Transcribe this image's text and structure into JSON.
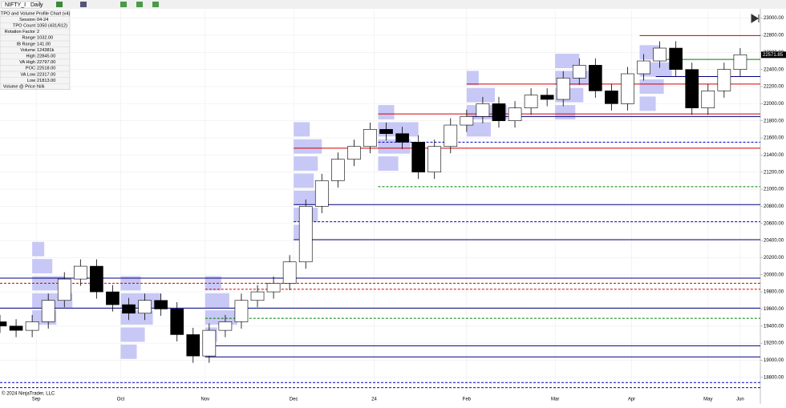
{
  "toolbar": {
    "symbol": "NIFTY_I",
    "interval": "Daily"
  },
  "info_table": {
    "title": "TPO and Volume Profile Chart (v4)",
    "rows": [
      [
        "Session",
        "04-24"
      ],
      [
        "TPO Count",
        "1050 (431/612)"
      ],
      [
        "Rotation Factor",
        "2"
      ],
      [
        "Range",
        "1032.00"
      ],
      [
        "IB Range",
        "141.00"
      ],
      [
        "Volume",
        "124381k"
      ],
      [
        "High",
        "22845.00"
      ],
      [
        "VA High",
        "22797.00"
      ],
      [
        "POC",
        "22518.00"
      ],
      [
        "VA Low",
        "22317.00"
      ],
      [
        "Low",
        "21813.00"
      ],
      [
        "Volume @ Price",
        "N/A"
      ]
    ]
  },
  "footer": "© 2024 NinjaTrader, LLC",
  "chart_data": {
    "type": "candlestick",
    "x": [
      0,
      4,
      8,
      12,
      16,
      20,
      24,
      28,
      32,
      36,
      40,
      44,
      48,
      52,
      56,
      60,
      64,
      68,
      72,
      76,
      80,
      84,
      88,
      92,
      96,
      100,
      104,
      108,
      112,
      116,
      120,
      124,
      128,
      132,
      136,
      140,
      144,
      148,
      152,
      156,
      160,
      164,
      168,
      172,
      176,
      180,
      184
    ],
    "open": [
      19450,
      19400,
      19350,
      19450,
      19700,
      19950,
      20100,
      19800,
      19650,
      19550,
      19700,
      19600,
      19300,
      19050,
      19350,
      19450,
      19700,
      19800,
      19900,
      20150,
      20800,
      21100,
      21350,
      21500,
      21700,
      21650,
      21550,
      21200,
      21500,
      21750,
      21850,
      22000,
      21800,
      21950,
      22100,
      22050,
      22300,
      22450,
      22150,
      22000,
      22350,
      22500,
      22650,
      22400,
      21950,
      22150,
      22400
    ],
    "high": [
      19530,
      19480,
      19530,
      19780,
      20030,
      20180,
      20180,
      19880,
      19730,
      19780,
      19780,
      19680,
      19380,
      19430,
      19530,
      19780,
      19880,
      19980,
      20230,
      20880,
      21180,
      21430,
      21580,
      21780,
      21780,
      21730,
      21630,
      21580,
      21830,
      21930,
      22080,
      22080,
      22030,
      22180,
      22180,
      22380,
      22530,
      22530,
      22230,
      22430,
      22580,
      22730,
      22730,
      22480,
      22230,
      22480,
      22650
    ],
    "low": [
      19320,
      19270,
      19270,
      19370,
      19620,
      19870,
      19720,
      19570,
      19470,
      19470,
      19520,
      19220,
      18970,
      18970,
      19270,
      19370,
      19620,
      19720,
      19820,
      20070,
      20720,
      21020,
      21270,
      21420,
      21570,
      21470,
      21120,
      21120,
      21420,
      21670,
      21770,
      21720,
      21720,
      21870,
      21970,
      21970,
      22220,
      22070,
      21920,
      21920,
      22270,
      22420,
      22320,
      21870,
      21870,
      22070,
      22320
    ],
    "close": [
      19400,
      19350,
      19450,
      19700,
      19950,
      20100,
      19800,
      19650,
      19550,
      19700,
      19600,
      19300,
      19050,
      19350,
      19450,
      19700,
      19800,
      19900,
      20150,
      20800,
      21100,
      21350,
      21500,
      21700,
      21650,
      21550,
      21200,
      21500,
      21750,
      21850,
      22000,
      21800,
      21950,
      22100,
      22050,
      22300,
      22450,
      22150,
      22000,
      22350,
      22500,
      22650,
      22400,
      21950,
      22150,
      22400,
      22572
    ],
    "up_color": "#ffffff",
    "down_color": "#000000",
    "last_price": 22571.85,
    "xlim": [
      0,
      189
    ],
    "ylim": [
      18620,
      23100
    ],
    "xticks": [
      {
        "value": 9,
        "label": "Sep"
      },
      {
        "value": 30,
        "label": "Oct"
      },
      {
        "value": 51,
        "label": "Nov"
      },
      {
        "value": 73,
        "label": "Dec"
      },
      {
        "value": 93,
        "label": "24"
      },
      {
        "value": 116,
        "label": "Feb"
      },
      {
        "value": 138,
        "label": "Mar"
      },
      {
        "value": 157,
        "label": "Apr"
      },
      {
        "value": 176,
        "label": "May"
      },
      {
        "value": 184,
        "label": "Jun"
      }
    ],
    "yticks": [
      {
        "value": 18800,
        "label": "18800.00"
      },
      {
        "value": 19000,
        "label": "19000.00"
      },
      {
        "value": 19200,
        "label": "19200.00"
      },
      {
        "value": 19400,
        "label": "19400.00"
      },
      {
        "value": 19600,
        "label": "19600.00"
      },
      {
        "value": 19800,
        "label": "19800.00"
      },
      {
        "value": 20000,
        "label": "20000.00"
      },
      {
        "value": 20200,
        "label": "20200.00"
      },
      {
        "value": 20400,
        "label": "20400.00"
      },
      {
        "value": 20600,
        "label": "20600.00"
      },
      {
        "value": 20800,
        "label": "20800.00"
      },
      {
        "value": 21000,
        "label": "21000.00"
      },
      {
        "value": 21200,
        "label": "21200.00"
      },
      {
        "value": 21400,
        "label": "21400.00"
      },
      {
        "value": 21600,
        "label": "21600.00"
      },
      {
        "value": 21800,
        "label": "21800.00"
      },
      {
        "value": 22000,
        "label": "22000.00"
      },
      {
        "value": 22200,
        "label": "22200.00"
      },
      {
        "value": 22400,
        "label": "22400.00"
      },
      {
        "value": 22600,
        "label": "22600.00"
      },
      {
        "value": 22800,
        "label": "22800.00"
      },
      {
        "value": 23000,
        "label": "23000.00"
      }
    ],
    "grid": true,
    "profile_color": "#c8c8f6",
    "profiles": [
      {
        "start": 8,
        "prices": [
          19500,
          19700,
          19900,
          20100,
          20300
        ],
        "widths": [
          6,
          10,
          8,
          5,
          3
        ]
      },
      {
        "start": 30,
        "prices": [
          19100,
          19300,
          19500,
          19700,
          19900
        ],
        "widths": [
          4,
          6,
          8,
          10,
          5
        ]
      },
      {
        "start": 51,
        "prices": [
          19300,
          19500,
          19700,
          19900
        ],
        "widths": [
          3,
          8,
          6,
          4
        ]
      },
      {
        "start": 73,
        "prices": [
          20500,
          20700,
          20900,
          21100,
          21300,
          21500,
          21700
        ],
        "widths": [
          4,
          6,
          8,
          5,
          6,
          7,
          4
        ]
      },
      {
        "start": 94,
        "prices": [
          21300,
          21500,
          21700,
          21900
        ],
        "widths": [
          5,
          8,
          10,
          4
        ]
      },
      {
        "start": 116,
        "prices": [
          21700,
          21900,
          22100,
          22300
        ],
        "widths": [
          6,
          10,
          7,
          3
        ]
      },
      {
        "start": 138,
        "prices": [
          21900,
          22100,
          22300,
          22500
        ],
        "widths": [
          5,
          7,
          10,
          6
        ]
      },
      {
        "start": 159,
        "prices": [
          22000,
          22200,
          22400,
          22600
        ],
        "widths": [
          4,
          6,
          8,
          5
        ]
      }
    ],
    "levels": [
      {
        "value": 22797,
        "color": "#d00000",
        "dashed": false,
        "start": 159
      },
      {
        "value": 22518,
        "color": "#008000",
        "dashed": false,
        "start": 163
      },
      {
        "value": 22317,
        "color": "#000080",
        "dashed": false,
        "start": 163
      },
      {
        "value": 22230,
        "color": "#d00000",
        "dashed": false,
        "start": 116
      },
      {
        "value": 21880,
        "color": "#d00000",
        "dashed": false,
        "start": 94
      },
      {
        "value": 21850,
        "color": "#000080",
        "dashed": false,
        "start": 116
      },
      {
        "value": 21550,
        "color": "#0000c0",
        "dashed": true,
        "start": 94
      },
      {
        "value": 21480,
        "color": "#d00000",
        "dashed": false,
        "start": 73
      },
      {
        "value": 21030,
        "color": "#008000",
        "dashed": true,
        "start": 94
      },
      {
        "value": 20820,
        "color": "#000080",
        "dashed": false,
        "start": 73
      },
      {
        "value": 20620,
        "color": "#0000c0",
        "dashed": true,
        "start": 73
      },
      {
        "value": 20410,
        "color": "#000080",
        "dashed": false,
        "start": 73
      },
      {
        "value": 19960,
        "color": "#000080",
        "dashed": false,
        "start": 0
      },
      {
        "value": 19900,
        "color": "#d00000",
        "dashed": true,
        "start": 0
      },
      {
        "value": 19830,
        "color": "#d00000",
        "dashed": true,
        "start": 51
      },
      {
        "value": 19610,
        "color": "#000080",
        "dashed": false,
        "start": 0
      },
      {
        "value": 19490,
        "color": "#008000",
        "dashed": true,
        "start": 51
      },
      {
        "value": 19170,
        "color": "#000080",
        "dashed": false,
        "start": 51
      },
      {
        "value": 19040,
        "color": "#000080",
        "dashed": false,
        "start": 51
      },
      {
        "value": 18740,
        "color": "#0000c0",
        "dashed": true,
        "start": 0
      },
      {
        "value": 18680,
        "color": "#0000c0",
        "dashed": true,
        "start": 0
      }
    ]
  }
}
